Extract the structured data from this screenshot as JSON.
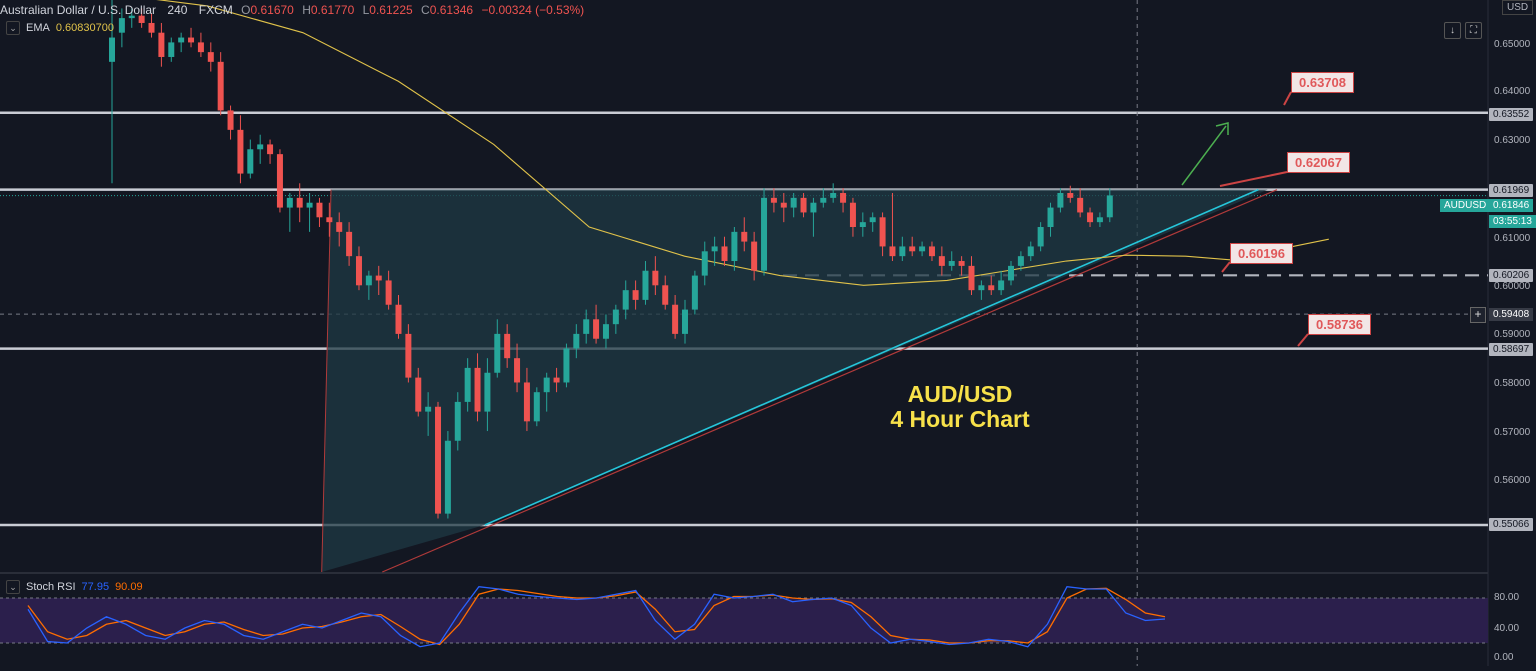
{
  "header": {
    "symbol_name": "Australian Dollar / U.S. Dollar",
    "interval": "240",
    "exchange": "FXCM",
    "open_label": "O",
    "open": "0.61670",
    "high_label": "H",
    "high": "0.61770",
    "low_label": "L",
    "low": "0.61225",
    "close_label": "C",
    "close": "0.61346",
    "change": "−0.00324 (−0.53%)",
    "currency": "USD",
    "buttons": [
      "↓",
      "⛶"
    ]
  },
  "indicators": {
    "ema": {
      "name": "EMA",
      "value": "0.60830700"
    },
    "stoch_rsi": {
      "name": "Stoch RSI",
      "k": "77.95",
      "d": "90.09"
    }
  },
  "title": {
    "line1": "AUD/USD",
    "line2": "4 Hour Chart"
  },
  "callouts": [
    "0.63708",
    "0.62067",
    "0.60196",
    "0.58736"
  ],
  "axis": {
    "price_ticks": [
      "0.65000",
      "0.64000",
      "0.63000",
      "0.61000",
      "0.60000",
      "0.59000",
      "0.58000",
      "0.57000",
      "0.56000"
    ],
    "level_tags": [
      "0.63552",
      "0.61969",
      "0.60206",
      "0.58697",
      "0.55066"
    ],
    "symbol_tag": "AUDUSD",
    "last_price": "0.61846",
    "countdown": "03:55:13",
    "crosshair_price": "0.59408",
    "rsi_ticks": [
      "80.00",
      "40.00",
      "0.00"
    ]
  },
  "colors": {
    "background": "#131722",
    "up": "#26a69a",
    "down": "#ef5350",
    "ema": "#e0c24a",
    "support_resistance": "#c9ccd4",
    "trendline": "#26c6da",
    "triangle_fill": "#1f3a44",
    "rsi_band": "#2b1f4c",
    "rsi_k": "#2962ff",
    "rsi_d": "#ff6d00",
    "callout_text": "#e0585a",
    "title_text": "#f7e14a",
    "arrow": "#4caf50"
  },
  "chart_data": {
    "type": "candlestick",
    "title": "AUD/USD 4 Hour Chart",
    "ylim": [
      0.548,
      0.657
    ],
    "horizontal_levels": [
      0.63552,
      0.61969,
      0.58697,
      0.55066
    ],
    "dashed_levels": [
      0.60206
    ],
    "last_price": 0.61846,
    "crosshair_price": 0.59408,
    "candles": [
      [
        0.646,
        0.66,
        0.621,
        0.651
      ],
      [
        0.652,
        0.657,
        0.649,
        0.655
      ],
      [
        0.655,
        0.657,
        0.653,
        0.6555
      ],
      [
        0.6555,
        0.657,
        0.653,
        0.654
      ],
      [
        0.654,
        0.656,
        0.651,
        0.652
      ],
      [
        0.652,
        0.654,
        0.645,
        0.647
      ],
      [
        0.647,
        0.651,
        0.646,
        0.65
      ],
      [
        0.65,
        0.652,
        0.648,
        0.651
      ],
      [
        0.651,
        0.653,
        0.649,
        0.65
      ],
      [
        0.65,
        0.652,
        0.647,
        0.648
      ],
      [
        0.648,
        0.65,
        0.644,
        0.646
      ],
      [
        0.646,
        0.648,
        0.635,
        0.636
      ],
      [
        0.636,
        0.637,
        0.63,
        0.632
      ],
      [
        0.632,
        0.635,
        0.621,
        0.623
      ],
      [
        0.623,
        0.63,
        0.622,
        0.628
      ],
      [
        0.628,
        0.631,
        0.625,
        0.629
      ],
      [
        0.629,
        0.63,
        0.625,
        0.627
      ],
      [
        0.627,
        0.628,
        0.615,
        0.616
      ],
      [
        0.616,
        0.619,
        0.611,
        0.618
      ],
      [
        0.618,
        0.621,
        0.613,
        0.616
      ],
      [
        0.616,
        0.619,
        0.611,
        0.617
      ],
      [
        0.617,
        0.618,
        0.612,
        0.614
      ],
      [
        0.614,
        0.617,
        0.61,
        0.613
      ],
      [
        0.613,
        0.615,
        0.608,
        0.611
      ],
      [
        0.611,
        0.613,
        0.604,
        0.606
      ],
      [
        0.606,
        0.608,
        0.599,
        0.6
      ],
      [
        0.6,
        0.603,
        0.597,
        0.602
      ],
      [
        0.602,
        0.604,
        0.598,
        0.601
      ],
      [
        0.601,
        0.603,
        0.595,
        0.596
      ],
      [
        0.596,
        0.598,
        0.589,
        0.59
      ],
      [
        0.59,
        0.592,
        0.58,
        0.581
      ],
      [
        0.581,
        0.583,
        0.573,
        0.574
      ],
      [
        0.574,
        0.578,
        0.569,
        0.575
      ],
      [
        0.575,
        0.576,
        0.552,
        0.553
      ],
      [
        0.553,
        0.57,
        0.552,
        0.568
      ],
      [
        0.568,
        0.578,
        0.566,
        0.576
      ],
      [
        0.576,
        0.585,
        0.574,
        0.583
      ],
      [
        0.583,
        0.586,
        0.572,
        0.574
      ],
      [
        0.574,
        0.585,
        0.57,
        0.582
      ],
      [
        0.582,
        0.593,
        0.581,
        0.59
      ],
      [
        0.59,
        0.592,
        0.583,
        0.585
      ],
      [
        0.585,
        0.588,
        0.578,
        0.58
      ],
      [
        0.58,
        0.583,
        0.57,
        0.572
      ],
      [
        0.572,
        0.579,
        0.571,
        0.578
      ],
      [
        0.578,
        0.582,
        0.574,
        0.581
      ],
      [
        0.581,
        0.583,
        0.578,
        0.58
      ],
      [
        0.58,
        0.588,
        0.579,
        0.587
      ],
      [
        0.587,
        0.592,
        0.585,
        0.59
      ],
      [
        0.59,
        0.595,
        0.588,
        0.593
      ],
      [
        0.593,
        0.596,
        0.588,
        0.589
      ],
      [
        0.589,
        0.594,
        0.587,
        0.592
      ],
      [
        0.592,
        0.596,
        0.59,
        0.595
      ],
      [
        0.595,
        0.601,
        0.593,
        0.599
      ],
      [
        0.599,
        0.601,
        0.595,
        0.597
      ],
      [
        0.597,
        0.605,
        0.596,
        0.603
      ],
      [
        0.603,
        0.606,
        0.598,
        0.6
      ],
      [
        0.6,
        0.602,
        0.595,
        0.596
      ],
      [
        0.596,
        0.598,
        0.589,
        0.59
      ],
      [
        0.59,
        0.597,
        0.588,
        0.595
      ],
      [
        0.595,
        0.603,
        0.594,
        0.602
      ],
      [
        0.602,
        0.609,
        0.6,
        0.607
      ],
      [
        0.607,
        0.61,
        0.604,
        0.608
      ],
      [
        0.608,
        0.61,
        0.604,
        0.605
      ],
      [
        0.605,
        0.612,
        0.603,
        0.611
      ],
      [
        0.611,
        0.614,
        0.607,
        0.609
      ],
      [
        0.609,
        0.611,
        0.601,
        0.603
      ],
      [
        0.603,
        0.62,
        0.602,
        0.618
      ],
      [
        0.618,
        0.62,
        0.615,
        0.617
      ],
      [
        0.617,
        0.619,
        0.613,
        0.616
      ],
      [
        0.616,
        0.619,
        0.614,
        0.618
      ],
      [
        0.618,
        0.619,
        0.614,
        0.615
      ],
      [
        0.615,
        0.618,
        0.61,
        0.617
      ],
      [
        0.617,
        0.62,
        0.616,
        0.618
      ],
      [
        0.618,
        0.621,
        0.617,
        0.619
      ],
      [
        0.619,
        0.62,
        0.615,
        0.617
      ],
      [
        0.617,
        0.618,
        0.61,
        0.612
      ],
      [
        0.612,
        0.615,
        0.61,
        0.613
      ],
      [
        0.613,
        0.615,
        0.611,
        0.614
      ],
      [
        0.614,
        0.615,
        0.606,
        0.608
      ],
      [
        0.608,
        0.619,
        0.605,
        0.606
      ],
      [
        0.606,
        0.61,
        0.605,
        0.608
      ],
      [
        0.608,
        0.61,
        0.606,
        0.607
      ],
      [
        0.607,
        0.609,
        0.606,
        0.608
      ],
      [
        0.608,
        0.609,
        0.605,
        0.606
      ],
      [
        0.606,
        0.608,
        0.602,
        0.604
      ],
      [
        0.604,
        0.607,
        0.603,
        0.605
      ],
      [
        0.605,
        0.606,
        0.602,
        0.604
      ],
      [
        0.604,
        0.606,
        0.598,
        0.599
      ],
      [
        0.599,
        0.601,
        0.597,
        0.6
      ],
      [
        0.6,
        0.602,
        0.598,
        0.599
      ],
      [
        0.599,
        0.603,
        0.598,
        0.601
      ],
      [
        0.601,
        0.605,
        0.6,
        0.604
      ],
      [
        0.604,
        0.607,
        0.603,
        0.606
      ],
      [
        0.606,
        0.609,
        0.605,
        0.608
      ],
      [
        0.608,
        0.613,
        0.607,
        0.612
      ],
      [
        0.612,
        0.617,
        0.61,
        0.616
      ],
      [
        0.616,
        0.62,
        0.615,
        0.619
      ],
      [
        0.619,
        0.6205,
        0.617,
        0.618
      ],
      [
        0.618,
        0.62,
        0.614,
        0.615
      ],
      [
        0.615,
        0.616,
        0.612,
        0.613
      ],
      [
        0.613,
        0.615,
        0.612,
        0.614
      ],
      [
        0.614,
        0.62,
        0.613,
        0.6185
      ]
    ],
    "ema": [
      [
        0,
        0.66
      ],
      [
        8,
        0.6575
      ],
      [
        16,
        0.652
      ],
      [
        24,
        0.642
      ],
      [
        32,
        0.629
      ],
      [
        40,
        0.612
      ],
      [
        48,
        0.606
      ],
      [
        56,
        0.602
      ],
      [
        63,
        0.6
      ],
      [
        70,
        0.601
      ],
      [
        75,
        0.603
      ],
      [
        80,
        0.605
      ],
      [
        85,
        0.6062
      ],
      [
        90,
        0.606
      ],
      [
        95,
        0.605
      ],
      [
        99,
        0.608
      ],
      [
        102,
        0.6095
      ]
    ],
    "stoch_rsi": {
      "k": [
        65,
        22,
        20,
        40,
        55,
        45,
        30,
        25,
        40,
        50,
        45,
        30,
        25,
        35,
        45,
        40,
        50,
        60,
        55,
        30,
        15,
        20,
        60,
        95,
        92,
        85,
        82,
        80,
        78,
        80,
        85,
        90,
        50,
        25,
        45,
        85,
        80,
        82,
        85,
        75,
        78,
        80,
        70,
        40,
        20,
        25,
        22,
        18,
        20,
        25,
        22,
        15,
        45,
        95,
        92,
        92,
        60,
        50,
        52
      ],
      "d": [
        70,
        35,
        25,
        30,
        45,
        50,
        40,
        30,
        35,
        45,
        48,
        38,
        30,
        32,
        40,
        42,
        48,
        55,
        58,
        42,
        25,
        18,
        45,
        85,
        92,
        90,
        86,
        82,
        80,
        80,
        83,
        88,
        65,
        35,
        38,
        70,
        82,
        82,
        84,
        80,
        78,
        79,
        74,
        55,
        30,
        25,
        24,
        20,
        20,
        23,
        23,
        20,
        35,
        80,
        92,
        93,
        78,
        60,
        55
      ]
    }
  }
}
